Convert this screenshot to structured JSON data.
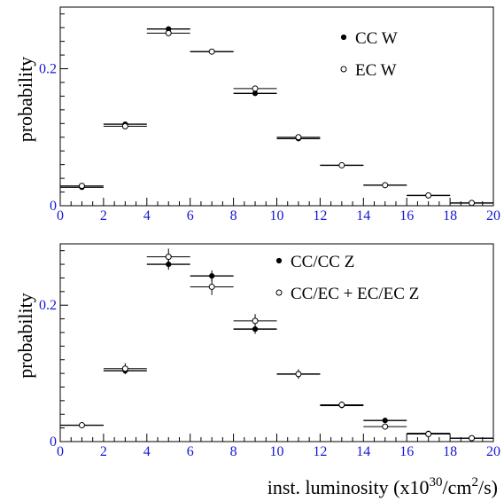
{
  "chart_data": [
    {
      "type": "scatter",
      "ylabel": "probability",
      "xlim": [
        0,
        20
      ],
      "ylim": [
        0,
        0.29
      ],
      "xticks": [
        "0",
        "2",
        "4",
        "6",
        "8",
        "10",
        "12",
        "14",
        "16",
        "18",
        "20"
      ],
      "yticks": [
        {
          "value": 0,
          "label": "0"
        },
        {
          "value": 0.2,
          "label": "0.2"
        }
      ],
      "legend_position": "top-right",
      "series": [
        {
          "name": "CC W",
          "marker": "filled",
          "x": [
            1,
            3,
            5,
            7,
            9,
            11,
            13,
            15,
            17,
            19
          ],
          "y": [
            0.027,
            0.119,
            0.258,
            0.225,
            0.164,
            0.098,
            0.059,
            0.03,
            0.015,
            0.004
          ],
          "err": [
            0.001,
            0.002,
            0.002,
            0.002,
            0.002,
            0.001,
            0.001,
            0.001,
            0.001,
            0.001
          ]
        },
        {
          "name": "EC W",
          "marker": "open",
          "x": [
            1,
            3,
            5,
            7,
            9,
            11,
            13,
            15,
            17,
            19
          ],
          "y": [
            0.029,
            0.116,
            0.252,
            0.225,
            0.171,
            0.1,
            0.059,
            0.03,
            0.015,
            0.004
          ],
          "err": [
            0.001,
            0.002,
            0.002,
            0.002,
            0.002,
            0.001,
            0.001,
            0.001,
            0.001,
            0.001
          ]
        }
      ]
    },
    {
      "type": "scatter",
      "ylabel": "probability",
      "xlabel": "inst. luminosity (x10^30/cm^2/s)",
      "xlim": [
        0,
        20
      ],
      "ylim": [
        0,
        0.29
      ],
      "xticks": [
        "0",
        "2",
        "4",
        "6",
        "8",
        "10",
        "12",
        "14",
        "16",
        "18",
        "20"
      ],
      "yticks": [
        {
          "value": 0,
          "label": "0"
        },
        {
          "value": 0.2,
          "label": "0.2"
        }
      ],
      "legend_position": "top-right",
      "series": [
        {
          "name": "CC/CC Z",
          "marker": "filled",
          "x": [
            1,
            3,
            5,
            7,
            9,
            11,
            13,
            15,
            17,
            19
          ],
          "y": [
            0.024,
            0.104,
            0.26,
            0.243,
            0.165,
            0.099,
            0.053,
            0.031,
            0.012,
            0.005
          ],
          "err": [
            0.002,
            0.005,
            0.008,
            0.008,
            0.007,
            0.006,
            0.004,
            0.002,
            0.002,
            0.001
          ]
        },
        {
          "name": "CC/EC + EC/EC Z",
          "marker": "open",
          "x": [
            1,
            3,
            5,
            7,
            9,
            11,
            13,
            15,
            17,
            19
          ],
          "y": [
            0.024,
            0.107,
            0.271,
            0.227,
            0.177,
            0.099,
            0.054,
            0.022,
            0.011,
            0.005
          ],
          "err": [
            0.002,
            0.008,
            0.012,
            0.012,
            0.01,
            0.007,
            0.005,
            0.003,
            0.002,
            0.001
          ]
        }
      ]
    }
  ],
  "xlabel_display": {
    "prefix": "inst. luminosity (x10",
    "exp1": "30",
    "middle": "/cm",
    "exp2": "2",
    "suffix": "/s)"
  }
}
